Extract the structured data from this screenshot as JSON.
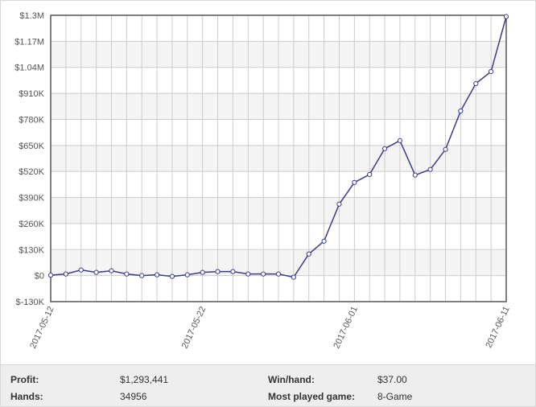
{
  "chart_data": {
    "type": "line",
    "categories": [
      "2017-05-12",
      null,
      null,
      null,
      null,
      null,
      null,
      null,
      null,
      null,
      "2017-05-22",
      null,
      null,
      null,
      null,
      null,
      null,
      null,
      null,
      null,
      "2017-06-01",
      null,
      null,
      null,
      null,
      null,
      null,
      null,
      null,
      null,
      "2017-06-11"
    ],
    "series": [
      {
        "color": "#3b3b8f",
        "values": [
          2000,
          8000,
          28000,
          16000,
          24000,
          8000,
          0,
          4000,
          -4000,
          4000,
          16000,
          20000,
          20000,
          8000,
          8000,
          8000,
          -8000,
          108000,
          172000,
          357000,
          465000,
          505000,
          634000,
          674000,
          502000,
          530000,
          630000,
          822000,
          959000,
          1019000,
          1293441
        ]
      }
    ],
    "ylim": [
      -130000,
      1300000
    ],
    "yticks": [
      {
        "value": -130000,
        "label": "$-130K"
      },
      {
        "value": 0,
        "label": "$0"
      },
      {
        "value": 130000,
        "label": "$130K"
      },
      {
        "value": 260000,
        "label": "$260K"
      },
      {
        "value": 390000,
        "label": "$390K"
      },
      {
        "value": 520000,
        "label": "$520K"
      },
      {
        "value": 650000,
        "label": "$650K"
      },
      {
        "value": 780000,
        "label": "$780K"
      },
      {
        "value": 910000,
        "label": "$910K"
      },
      {
        "value": 1040000,
        "label": "$1.04M"
      },
      {
        "value": 1170000,
        "label": "$1.17M"
      },
      {
        "value": 1300000,
        "label": "$1.3M"
      }
    ],
    "grid": true
  },
  "stats": {
    "rows": [
      [
        "Profit:",
        "$1,293,441",
        "Win/hand:",
        "$37.00"
      ],
      [
        "Hands:",
        "34956",
        "Most played game:",
        "8-Game"
      ]
    ]
  }
}
